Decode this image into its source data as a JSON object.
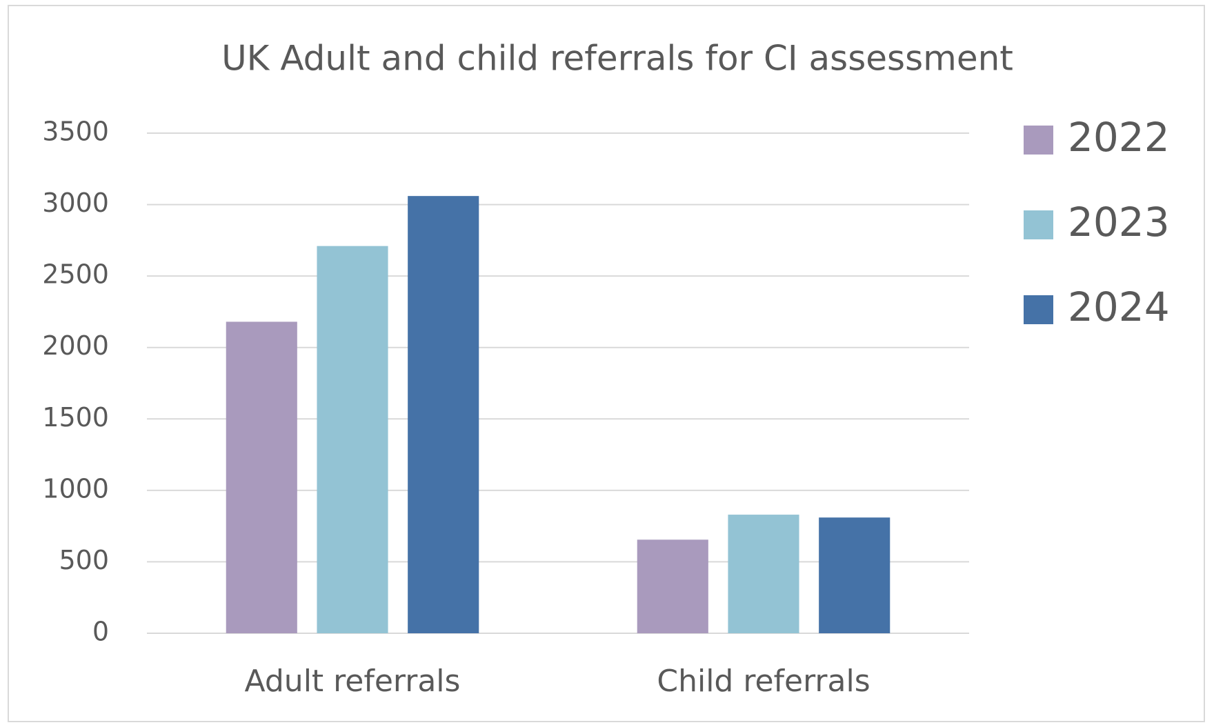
{
  "chart_data": {
    "type": "bar",
    "title": "UK Adult and child referrals for CI assessment",
    "categories": [
      "Adult referrals",
      "Child referrals"
    ],
    "series": [
      {
        "name": "2022",
        "color": "#a99abd",
        "values": [
          2180,
          655
        ]
      },
      {
        "name": "2023",
        "color": "#93c3d4",
        "values": [
          2710,
          830
        ]
      },
      {
        "name": "2024",
        "color": "#4572a7",
        "values": [
          3060,
          810
        ]
      }
    ],
    "ylim": [
      0,
      3500
    ],
    "yticks": [
      0,
      500,
      1000,
      1500,
      2000,
      2500,
      3000,
      3500
    ],
    "grid": true,
    "legend": "right"
  }
}
